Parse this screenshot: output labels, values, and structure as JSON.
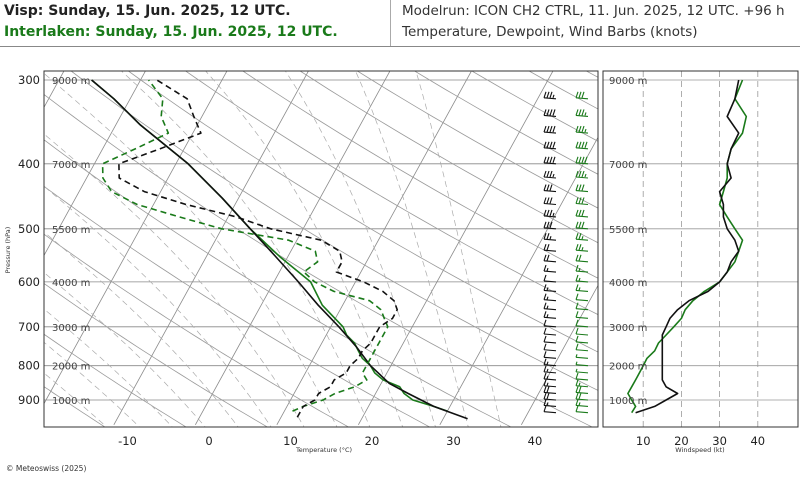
{
  "header": {
    "station1": "Visp: Sunday, 15. Jun. 2025, 12 UTC.",
    "station2": "Interlaken: Sunday, 15. Jun. 2025, 12 UTC.",
    "modelrun": "Modelrun: ICON CH2 CTRL, 11. Jun. 2025, 12 UTC. +96 h",
    "subtitle": "Temperature, Dewpoint, Wind Barbs (knots)"
  },
  "footer": {
    "copyright": "© Meteoswiss (2025)"
  },
  "colors": {
    "visp": "#111111",
    "interlaken": "#1a7a1a",
    "grid": "#888888"
  },
  "chart_data": [
    {
      "type": "line",
      "name": "skew-t",
      "xlabel": "Temperature (°C)",
      "ylabel": "Pressure (hPa)",
      "xticks": [
        -10,
        0,
        10,
        20,
        30,
        40
      ],
      "xlim": [
        -25,
        47
      ],
      "pressure_ticks": [
        300,
        400,
        500,
        600,
        700,
        800,
        900
      ],
      "pressure_tick_labels": [
        "300",
        "400",
        "500",
        "600",
        "700",
        "800",
        "900"
      ],
      "ylim": [
        295,
        980
      ],
      "height_labels": [
        {
          "p": 300,
          "label": "9000 m"
        },
        {
          "p": 400,
          "label": "7000 m"
        },
        {
          "p": 500,
          "label": "5500 m"
        },
        {
          "p": 600,
          "label": "4000 m"
        },
        {
          "p": 700,
          "label": "3000 m"
        },
        {
          "p": 800,
          "label": "2000 m"
        },
        {
          "p": 900,
          "label": "1000 m"
        }
      ],
      "series": [
        {
          "key": "visp_temp",
          "p": [
            960,
            920,
            880,
            850,
            800,
            750,
            700,
            650,
            600,
            550,
            500,
            450,
            400,
            350,
            320,
            300
          ],
          "v": [
            33,
            28,
            24,
            21,
            17.5,
            14.5,
            11,
            7,
            3,
            -1.5,
            -6.5,
            -12,
            -18.5,
            -27,
            -32,
            -36
          ]
        },
        {
          "key": "visp_dew",
          "p": [
            955,
            940,
            920,
            900,
            880,
            860,
            840,
            820,
            800,
            780,
            760,
            740,
            720,
            700,
            680,
            660,
            640,
            620,
            600,
            580,
            560,
            540,
            520,
            500,
            480,
            460,
            440,
            420,
            400,
            380,
            360,
            340,
            320,
            300
          ],
          "v": [
            12,
            12,
            12,
            13,
            13,
            14,
            14,
            15,
            15,
            15.5,
            15.5,
            16,
            16,
            16,
            17,
            17,
            16,
            14,
            11,
            7,
            7,
            6,
            3,
            -4,
            -9,
            -16,
            -22,
            -26,
            -27,
            -23,
            -19,
            -21,
            -23,
            -28
          ]
        },
        {
          "key": "interlaken_temp",
          "p": [
            935,
            920,
            900,
            880,
            860,
            840,
            820,
            800,
            780,
            760,
            740,
            720,
            700,
            650,
            600,
            550,
            500,
            450,
            400,
            350,
            320,
            300
          ],
          "v": [
            30,
            28,
            25,
            23.5,
            22.5,
            20,
            18.5,
            17.5,
            16,
            15,
            14,
            12.5,
            11.5,
            7.5,
            4.5,
            -1,
            -6.5,
            -12,
            -18.5,
            -27,
            -32,
            -36
          ]
        },
        {
          "key": "interlaken_dew",
          "p": [
            935,
            920,
            900,
            880,
            860,
            840,
            820,
            800,
            780,
            760,
            740,
            720,
            700,
            680,
            660,
            640,
            620,
            600,
            580,
            560,
            540,
            520,
            500,
            480,
            460,
            440,
            420,
            400,
            380,
            360,
            340,
            320,
            300
          ],
          "v": [
            11,
            12,
            14,
            15,
            17,
            18,
            17,
            17,
            17,
            17,
            17,
            17,
            17,
            16,
            15,
            13,
            8,
            5,
            3,
            4,
            3,
            -1,
            -10,
            -16,
            -22,
            -26,
            -28,
            -29,
            -26,
            -23,
            -25,
            -26,
            -29
          ]
        }
      ],
      "barbs": [
        {
          "key": "visp",
          "p": [
            320,
            340,
            360,
            380,
            400,
            420,
            440,
            460,
            480,
            500,
            520,
            540,
            560,
            580,
            600,
            620,
            640,
            660,
            680,
            700,
            720,
            740,
            760,
            780,
            800,
            820,
            840,
            860,
            880,
            900,
            920,
            940
          ],
          "kts": [
            35,
            40,
            40,
            40,
            40,
            35,
            30,
            30,
            35,
            30,
            25,
            20,
            20,
            15,
            10,
            15,
            15,
            15,
            15,
            10,
            10,
            10,
            10,
            10,
            15,
            15,
            15,
            15,
            20,
            20,
            15,
            10
          ]
        },
        {
          "key": "interlaken",
          "p": [
            320,
            340,
            360,
            380,
            400,
            420,
            440,
            460,
            480,
            500,
            520,
            540,
            560,
            580,
            600,
            620,
            640,
            660,
            680,
            700,
            720,
            740,
            760,
            780,
            800,
            820,
            840,
            860,
            880,
            900,
            920,
            940
          ],
          "kts": [
            30,
            35,
            35,
            40,
            40,
            35,
            30,
            30,
            30,
            30,
            25,
            25,
            20,
            15,
            15,
            15,
            10,
            10,
            10,
            10,
            10,
            10,
            10,
            5,
            5,
            5,
            10,
            15,
            20,
            20,
            15,
            10
          ]
        }
      ]
    },
    {
      "type": "line",
      "name": "windspeed",
      "xlabel": "Windspeed (kt)",
      "xticks": [
        10,
        20,
        30,
        40
      ],
      "xlim": [
        0,
        45
      ],
      "height_labels": [
        "9000 m",
        "7000 m",
        "5500 m",
        "4000 m",
        "3000 m",
        "2000 m",
        "1000 m"
      ],
      "series": [
        {
          "key": "visp",
          "p": [
            300,
            320,
            340,
            360,
            380,
            400,
            420,
            440,
            460,
            480,
            500,
            520,
            540,
            560,
            580,
            600,
            620,
            640,
            660,
            680,
            700,
            720,
            740,
            760,
            780,
            800,
            820,
            840,
            860,
            880,
            900,
            920,
            940
          ],
          "v": [
            35,
            34,
            32,
            35,
            33,
            32,
            33,
            30,
            31,
            31,
            32,
            34,
            35,
            33,
            32,
            30,
            27,
            22,
            19,
            17,
            16,
            15,
            15,
            15,
            15,
            15,
            15,
            15,
            16,
            19,
            16,
            13,
            8
          ]
        },
        {
          "key": "interlaken",
          "p": [
            300,
            320,
            340,
            360,
            380,
            400,
            420,
            440,
            460,
            480,
            500,
            520,
            540,
            560,
            580,
            600,
            620,
            640,
            660,
            680,
            700,
            720,
            740,
            760,
            780,
            800,
            820,
            840,
            860,
            880,
            900,
            920,
            940
          ],
          "v": [
            36,
            34,
            37,
            36,
            33,
            32,
            32,
            31,
            30,
            32,
            34,
            36,
            35,
            34,
            32,
            30,
            26,
            23,
            21,
            20,
            18,
            16,
            14,
            13,
            11,
            10,
            9,
            8,
            7,
            6,
            7,
            8,
            7
          ]
        }
      ]
    }
  ]
}
